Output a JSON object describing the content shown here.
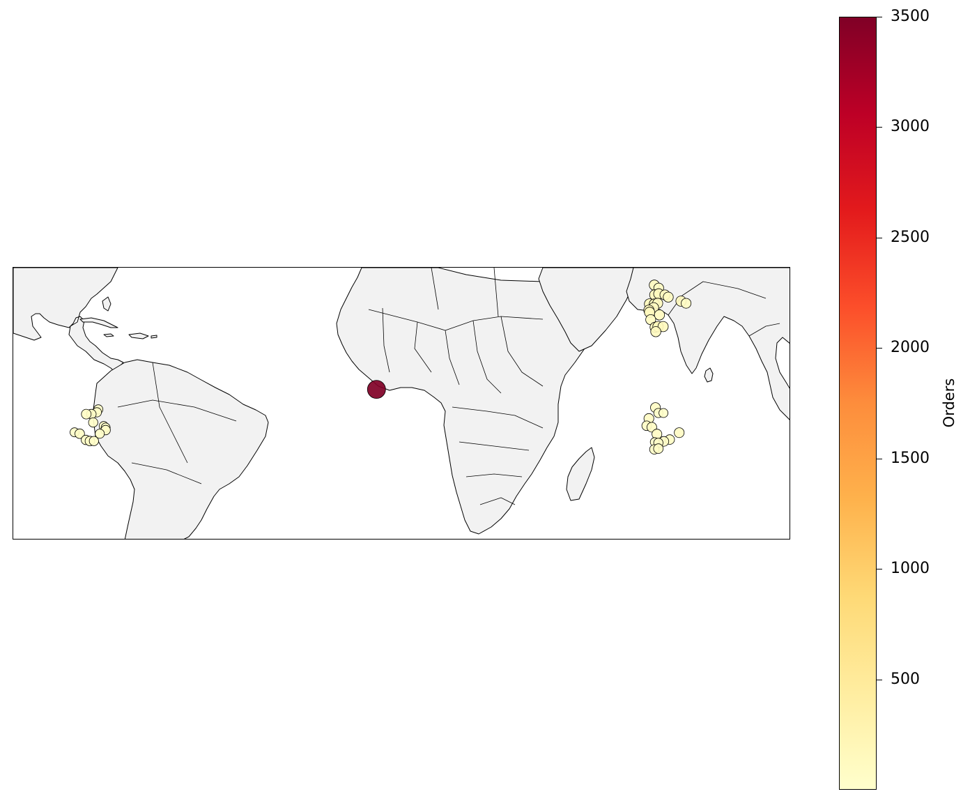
{
  "map": {
    "land_color": "#f2f2f2",
    "border_color": "#000000",
    "ocean_color": "#ffffff"
  },
  "colorbar": {
    "label": "Orders",
    "min": 0,
    "max": 3500,
    "ticks": [
      {
        "value": 500,
        "label": "500"
      },
      {
        "value": 1000,
        "label": "1000"
      },
      {
        "value": 1500,
        "label": "1500"
      },
      {
        "value": 2000,
        "label": "2000"
      },
      {
        "value": 2500,
        "label": "2500"
      },
      {
        "value": 3000,
        "label": "3000"
      },
      {
        "value": 3500,
        "label": "3500"
      }
    ],
    "colormap": "YlOrRd",
    "stops": [
      "#ffffcc",
      "#ffeda0",
      "#fed976",
      "#feb24c",
      "#fd8d3c",
      "#fc4e2a",
      "#e31a1c",
      "#bd0026",
      "#800026"
    ]
  },
  "chart_data": {
    "type": "scatter",
    "xlabel": "",
    "ylabel": "",
    "color_label": "Orders",
    "points": [
      {
        "lon": 1.0,
        "lat": 0.0,
        "orders": 3500
      },
      {
        "lon": 77.1,
        "lat": 28.7,
        "orders": 120
      },
      {
        "lon": 78.3,
        "lat": 27.9,
        "orders": 90
      },
      {
        "lon": 77.2,
        "lat": 26.0,
        "orders": 150
      },
      {
        "lon": 78.3,
        "lat": 26.3,
        "orders": 130
      },
      {
        "lon": 80.0,
        "lat": 26.0,
        "orders": 110
      },
      {
        "lon": 80.9,
        "lat": 25.4,
        "orders": 100
      },
      {
        "lon": 84.4,
        "lat": 24.3,
        "orders": 140
      },
      {
        "lon": 85.8,
        "lat": 23.7,
        "orders": 80
      },
      {
        "lon": 75.8,
        "lat": 23.5,
        "orders": 160
      },
      {
        "lon": 77.1,
        "lat": 23.5,
        "orders": 130
      },
      {
        "lon": 78.0,
        "lat": 23.7,
        "orders": 120
      },
      {
        "lon": 76.9,
        "lat": 22.5,
        "orders": 110
      },
      {
        "lon": 75.6,
        "lat": 21.8,
        "orders": 150
      },
      {
        "lon": 75.8,
        "lat": 21.2,
        "orders": 140
      },
      {
        "lon": 78.5,
        "lat": 20.5,
        "orders": 120
      },
      {
        "lon": 76.1,
        "lat": 19.2,
        "orders": 100
      },
      {
        "lon": 77.3,
        "lat": 17.1,
        "orders": 130
      },
      {
        "lon": 78.1,
        "lat": 17.3,
        "orders": 170
      },
      {
        "lon": 79.5,
        "lat": 17.3,
        "orders": 140
      },
      {
        "lon": 77.5,
        "lat": 15.9,
        "orders": 120
      },
      {
        "lon": 77.4,
        "lat": -5.0,
        "orders": 80
      },
      {
        "lon": 75.6,
        "lat": -8.0,
        "orders": 90
      },
      {
        "lon": 78.2,
        "lat": -6.5,
        "orders": 30
      },
      {
        "lon": 79.6,
        "lat": -6.5,
        "orders": 20
      },
      {
        "lon": 75.0,
        "lat": -10.0,
        "orders": 60
      },
      {
        "lon": 76.4,
        "lat": -10.4,
        "orders": 70
      },
      {
        "lon": 77.8,
        "lat": -12.3,
        "orders": 80
      },
      {
        "lon": 83.9,
        "lat": -11.9,
        "orders": 90
      },
      {
        "lon": 81.3,
        "lat": -13.8,
        "orders": 60
      },
      {
        "lon": 79.7,
        "lat": -14.3,
        "orders": 70
      },
      {
        "lon": 77.2,
        "lat": -14.5,
        "orders": 10
      },
      {
        "lon": 78.2,
        "lat": -14.7,
        "orders": 40
      },
      {
        "lon": 77.1,
        "lat": -16.5,
        "orders": 50
      },
      {
        "lon": 78.2,
        "lat": -16.3,
        "orders": 60
      },
      {
        "lon": -75.2,
        "lat": -5.5,
        "orders": 30
      },
      {
        "lon": -75.6,
        "lat": -6.3,
        "orders": 40
      },
      {
        "lon": -77.1,
        "lat": -6.8,
        "orders": 60
      },
      {
        "lon": -78.5,
        "lat": -6.8,
        "orders": 70
      },
      {
        "lon": -76.6,
        "lat": -9.1,
        "orders": 40
      },
      {
        "lon": -73.7,
        "lat": -10.1,
        "orders": 30
      },
      {
        "lon": -73.2,
        "lat": -10.5,
        "orders": 20
      },
      {
        "lon": -73.2,
        "lat": -11.2,
        "orders": 50
      },
      {
        "lon": -81.7,
        "lat": -11.8,
        "orders": 20
      },
      {
        "lon": -80.3,
        "lat": -12.2,
        "orders": 60
      },
      {
        "lon": -74.8,
        "lat": -12.2,
        "orders": 30
      },
      {
        "lon": -78.6,
        "lat": -13.9,
        "orders": 50
      },
      {
        "lon": -77.5,
        "lat": -14.2,
        "orders": 60
      },
      {
        "lon": -76.4,
        "lat": -14.2,
        "orders": 40
      }
    ]
  }
}
